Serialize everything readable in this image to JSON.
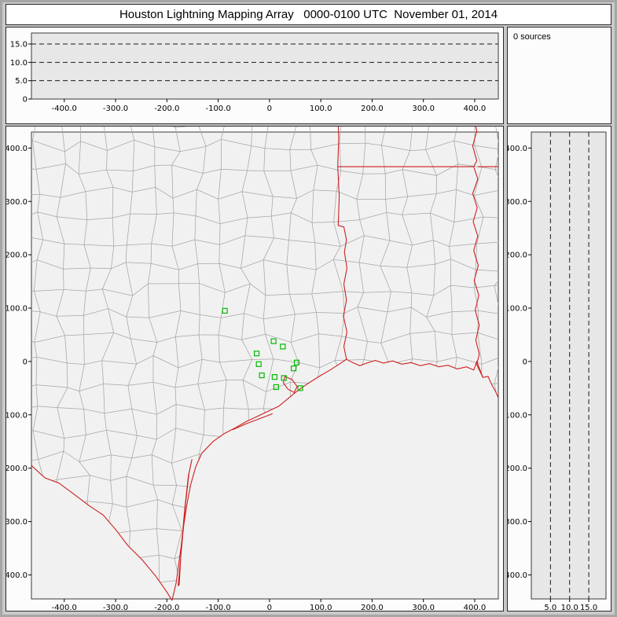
{
  "window": {
    "title": "Houston Lightning Mapping Array   0000-0100 UTC  November 01, 2014"
  },
  "sources_panel": {
    "label": "0 sources"
  },
  "colors": {
    "window_bg": "#c9c9c9",
    "panel_bg": "#fcfcfc",
    "map_plot_bg": "#f1f1f1",
    "alt_plot_bg": "#e7e7e7",
    "plot_border": "#3a3a3a",
    "grid_dash": "#1a1a1a",
    "county_line": "#a6a6a6",
    "state_line": "#cc2020",
    "station_green": "#00bb00"
  },
  "chart_data": {
    "type": "scatter",
    "title": "Houston Lightning Mapping Array   0000-0100 UTC  November 01, 2014",
    "source_count": 0,
    "source_count_label": "0 sources",
    "panels": {
      "ew_altitude": {
        "description": "altitude (km) vs east-west distance (km), no sources plotted",
        "x_range": [
          -464,
          446
        ],
        "y_range": [
          0,
          18
        ],
        "gridlines_km": [
          5,
          10,
          15
        ],
        "y_ticks": [
          {
            "v": 15,
            "label": "15.0"
          },
          {
            "v": 10,
            "label": "10.0"
          },
          {
            "v": 5,
            "label": "5.0"
          },
          {
            "v": 0,
            "label": "0"
          }
        ],
        "x_ticks": [
          {
            "v": -400,
            "label": "-400.0"
          },
          {
            "v": -300,
            "label": "-300.0"
          },
          {
            "v": -200,
            "label": "-200.0"
          },
          {
            "v": -100,
            "label": "-100.0"
          },
          {
            "v": 0,
            "label": "0"
          },
          {
            "v": 100,
            "label": "100.0"
          },
          {
            "v": 200,
            "label": "200.0"
          },
          {
            "v": 300,
            "label": "300.0"
          },
          {
            "v": 400,
            "label": "400.0"
          }
        ],
        "points": []
      },
      "plan_view": {
        "description": "plan view map, north-south vs east-west distance (km) centered on Houston LMA",
        "x_range": [
          -464,
          446
        ],
        "y_range": [
          -445,
          430
        ],
        "x_ticks": [
          {
            "v": -400,
            "label": "-400.0"
          },
          {
            "v": -300,
            "label": "-300.0"
          },
          {
            "v": -200,
            "label": "-200.0"
          },
          {
            "v": -100,
            "label": "-100.0"
          },
          {
            "v": 0,
            "label": "0"
          },
          {
            "v": 100,
            "label": "100.0"
          },
          {
            "v": 200,
            "label": "200.0"
          },
          {
            "v": 300,
            "label": "300.0"
          },
          {
            "v": 400,
            "label": "400.0"
          }
        ],
        "y_ticks": [
          {
            "v": 400,
            "label": "400.0"
          },
          {
            "v": 300,
            "label": "300.0"
          },
          {
            "v": 200,
            "label": "200.0"
          },
          {
            "v": 100,
            "label": "100.0"
          },
          {
            "v": 0,
            "label": "0"
          },
          {
            "v": -100,
            "label": "-100.0"
          },
          {
            "v": -200,
            "label": "-200.0"
          },
          {
            "v": -300,
            "label": "-300.0"
          },
          {
            "v": -400,
            "label": "-400.0"
          }
        ],
        "stations": [
          [
            -87,
            95
          ],
          [
            8,
            38
          ],
          [
            26,
            28
          ],
          [
            -25,
            15
          ],
          [
            -21,
            -5
          ],
          [
            53,
            -2
          ],
          [
            47,
            -13
          ],
          [
            -15,
            -26
          ],
          [
            10,
            -29
          ],
          [
            28,
            -31
          ],
          [
            13,
            -48
          ],
          [
            60,
            -50
          ]
        ],
        "points": [],
        "map": {
          "rio_grande": [
            [
              -464,
              -195
            ],
            [
              -438,
              -218
            ],
            [
              -410,
              -228
            ],
            [
              -382,
              -248
            ],
            [
              -352,
              -270
            ],
            [
              -324,
              -288
            ],
            [
              -300,
              -315
            ],
            [
              -276,
              -345
            ],
            [
              -248,
              -372
            ],
            [
              -222,
              -402
            ],
            [
              -200,
              -432
            ],
            [
              -190,
              -448
            ]
          ],
          "coast": [
            [
              -190,
              -448
            ],
            [
              -182,
              -415
            ],
            [
              -177,
              -380
            ],
            [
              -172,
              -345
            ],
            [
              -167,
              -305
            ],
            [
              -161,
              -268
            ],
            [
              -154,
              -232
            ],
            [
              -144,
              -198
            ],
            [
              -132,
              -172
            ],
            [
              -110,
              -150
            ],
            [
              -88,
              -135
            ],
            [
              -66,
              -124
            ],
            [
              -44,
              -112
            ],
            [
              -22,
              -102
            ],
            [
              -2,
              -93
            ],
            [
              18,
              -84
            ],
            [
              38,
              -68
            ],
            [
              52,
              -57
            ],
            [
              66,
              -47
            ],
            [
              82,
              -37
            ],
            [
              100,
              -26
            ],
            [
              118,
              -16
            ],
            [
              136,
              -5
            ],
            [
              150,
              4
            ],
            [
              162,
              -2
            ],
            [
              176,
              -8
            ],
            [
              190,
              -3
            ],
            [
              206,
              2
            ],
            [
              222,
              -3
            ],
            [
              240,
              1
            ],
            [
              258,
              -5
            ],
            [
              276,
              -2
            ],
            [
              294,
              -8
            ],
            [
              312,
              -4
            ],
            [
              330,
              -10
            ],
            [
              348,
              -7
            ],
            [
              366,
              -14
            ],
            [
              384,
              -10
            ],
            [
              398,
              -16
            ],
            [
              404,
              0
            ],
            [
              410,
              -15
            ],
            [
              416,
              -30
            ],
            [
              426,
              -28
            ],
            [
              434,
              -45
            ],
            [
              440,
              -55
            ],
            [
              446,
              -68
            ]
          ],
          "padre_island": [
            [
              -178,
              -420
            ],
            [
              -171,
              -345
            ],
            [
              -164,
              -270
            ],
            [
              -157,
              -210
            ],
            [
              -151,
              -183
            ],
            [
              -158,
              -214
            ],
            [
              -165,
              -274
            ],
            [
              -172,
              -350
            ],
            [
              -176,
              -418
            ]
          ],
          "matagorda_island": [
            [
              -72,
              -128
            ],
            [
              -44,
              -116
            ],
            [
              -16,
              -106
            ],
            [
              6,
              -98
            ]
          ],
          "galveston_bay": [
            [
              30,
              -28
            ],
            [
              44,
              -34
            ],
            [
              54,
              -47
            ],
            [
              48,
              -58
            ],
            [
              36,
              -52
            ],
            [
              27,
              -40
            ]
          ],
          "tx_la_border": [
            [
              150,
              4
            ],
            [
              145,
              28
            ],
            [
              151,
              55
            ],
            [
              144,
              85
            ],
            [
              150,
              115
            ],
            [
              145,
              145
            ],
            [
              151,
              175
            ],
            [
              146,
              205
            ],
            [
              150,
              228
            ],
            [
              145,
              252
            ],
            [
              134,
              255
            ],
            [
              136,
              310
            ],
            [
              133,
              365
            ],
            [
              135,
              420
            ],
            [
              133,
              460
            ]
          ],
          "ar_la_border": [
            [
              133,
              365
            ],
            [
              397,
              365
            ]
          ],
          "ar_ms_segment": [
            [
              406,
              365
            ],
            [
              446,
              365
            ]
          ],
          "mississippi_river": [
            [
              397,
              460
            ],
            [
              404,
              432
            ],
            [
              396,
              404
            ],
            [
              404,
              376
            ],
            [
              398,
              365
            ],
            [
              406,
              342
            ],
            [
              396,
              315
            ],
            [
              405,
              288
            ],
            [
              397,
              262
            ],
            [
              406,
              235
            ],
            [
              398,
              208
            ],
            [
              407,
              180
            ],
            [
              399,
              152
            ],
            [
              408,
              124
            ],
            [
              401,
              96
            ],
            [
              409,
              68
            ],
            [
              402,
              40
            ],
            [
              409,
              14
            ],
            [
              404,
              -6
            ],
            [
              410,
              -18
            ],
            [
              416,
              -30
            ]
          ]
        }
      },
      "ns_altitude": {
        "description": "north-south distance (km) vs altitude (km), no sources plotted",
        "x_range": [
          0,
          19.5
        ],
        "y_range": [
          -445,
          430
        ],
        "gridlines_km": [
          5,
          10,
          15
        ],
        "x_ticks": [
          {
            "v": 5,
            "label": "5.0"
          },
          {
            "v": 10,
            "label": "10.0"
          },
          {
            "v": 15,
            "label": "15.0"
          }
        ],
        "y_ticks": [
          {
            "v": 400,
            "label": "400.0"
          },
          {
            "v": 300,
            "label": "300.0"
          },
          {
            "v": 200,
            "label": "200.0"
          },
          {
            "v": 100,
            "label": "100.0"
          },
          {
            "v": 0,
            "label": "0"
          },
          {
            "v": -100,
            "label": "-100.0"
          },
          {
            "v": -200,
            "label": "-200.0"
          },
          {
            "v": -300,
            "label": "-300.0"
          },
          {
            "v": -400,
            "label": "-400.0"
          }
        ],
        "points": []
      }
    }
  }
}
